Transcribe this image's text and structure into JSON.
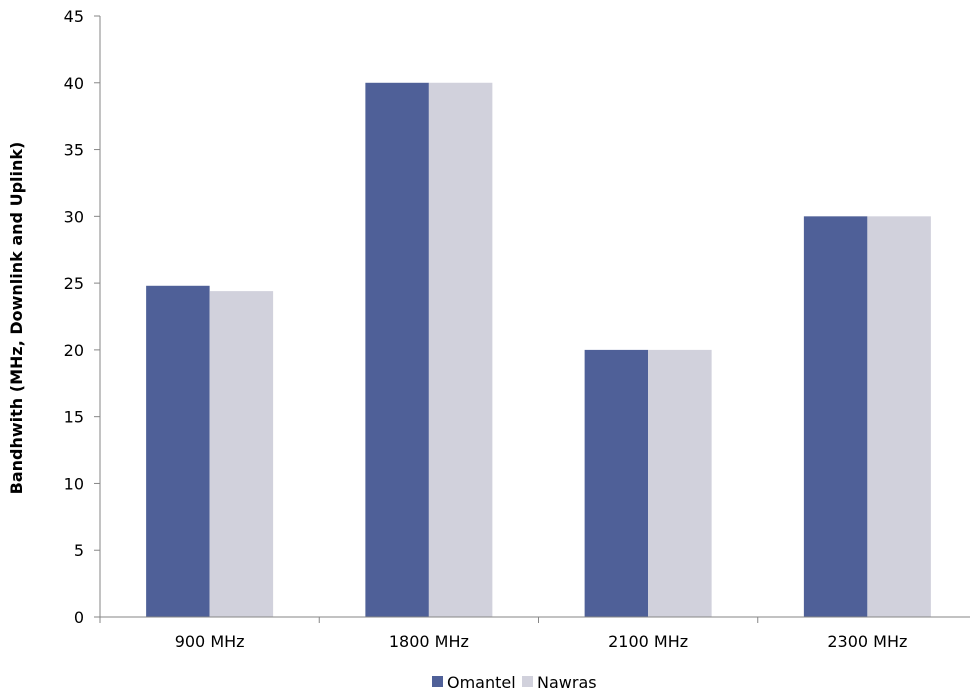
{
  "chart_data": {
    "type": "bar",
    "title": "",
    "xlabel": "",
    "ylabel": "Bandhwith (MHz, Downlink and Uplink)",
    "categories": [
      "900 MHz",
      "1800 MHz",
      "2100 MHz",
      "2300 MHz"
    ],
    "series": [
      {
        "name": "Omantel",
        "values": [
          24.8,
          40,
          20,
          30
        ],
        "color": "#4f6098"
      },
      {
        "name": "Nawras",
        "values": [
          24.4,
          40,
          20,
          30
        ],
        "color": "#d1d1dc"
      }
    ],
    "ylim": [
      0,
      45
    ],
    "yticks": [
      0,
      5,
      10,
      15,
      20,
      25,
      30,
      35,
      40,
      45
    ],
    "grid": false,
    "legend_position": "bottom-center"
  }
}
